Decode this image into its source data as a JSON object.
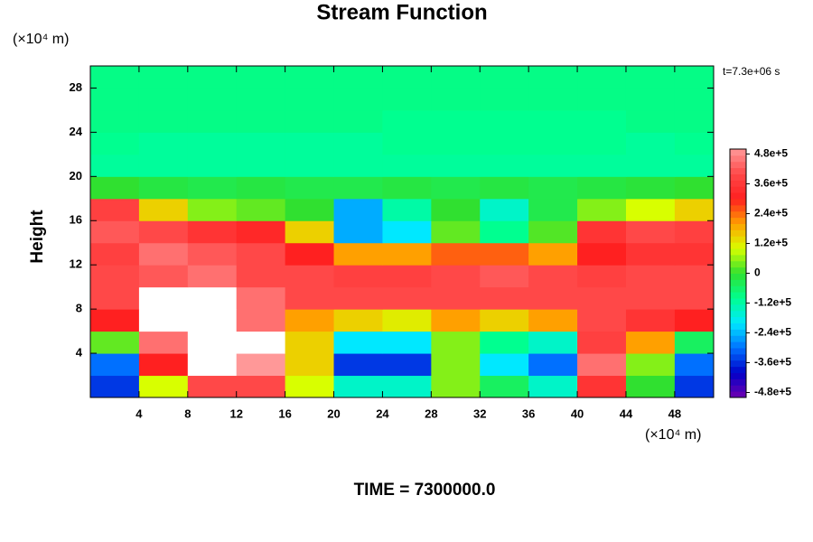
{
  "chart_data": {
    "type": "heatmap",
    "title": "Stream Function",
    "y_label": "Height",
    "y_unit": "(×10⁴ m)",
    "x_unit": "(×10⁴ m)",
    "time_label": "t=7.3e+06 s",
    "footer": "TIME = 7300000.0",
    "xlim": [
      0,
      51.2
    ],
    "ylim": [
      0,
      30
    ],
    "xticks": [
      4,
      8,
      12,
      16,
      20,
      24,
      28,
      32,
      36,
      40,
      44,
      48
    ],
    "yticks": [
      4,
      8,
      12,
      16,
      20,
      24,
      28
    ],
    "x": [
      2,
      6,
      10,
      14,
      18,
      22,
      26,
      30,
      34,
      38,
      42,
      46,
      50
    ],
    "y": [
      1,
      3,
      5,
      7,
      9,
      11,
      13,
      15,
      17,
      19,
      21,
      23,
      25,
      27,
      29
    ],
    "z": [
      [
        -350000.0,
        100000.0,
        400000.0,
        400000.0,
        100000.0,
        -150000.0,
        -150000.0,
        50000.0,
        -50000.0,
        -150000.0,
        350000.0,
        0,
        -350000.0
      ],
      [
        -300000.0,
        300000.0,
        550000.0,
        500000.0,
        150000.0,
        -350000.0,
        -350000.0,
        50000.0,
        -200000.0,
        -300000.0,
        450000.0,
        50000.0,
        -300000.0
      ],
      [
        30000.0,
        450000.0,
        550000.0,
        550000.0,
        150000.0,
        -200000.0,
        -200000.0,
        50000.0,
        -100000.0,
        -150000.0,
        380000.0,
        200000.0,
        -50000.0
      ],
      [
        300000.0,
        550000.0,
        550000.0,
        450000.0,
        200000.0,
        150000.0,
        120000.0,
        200000.0,
        150000.0,
        200000.0,
        400000.0,
        350000.0,
        300000.0
      ],
      [
        400000.0,
        520000.0,
        520000.0,
        450000.0,
        400000.0,
        400000.0,
        400000.0,
        400000.0,
        400000.0,
        400000.0,
        400000.0,
        400000.0,
        400000.0
      ],
      [
        400000.0,
        420000.0,
        450000.0,
        400000.0,
        400000.0,
        380000.0,
        380000.0,
        400000.0,
        420000.0,
        400000.0,
        380000.0,
        400000.0,
        400000.0
      ],
      [
        380000.0,
        450000.0,
        420000.0,
        400000.0,
        300000.0,
        200000.0,
        200000.0,
        250000.0,
        250000.0,
        200000.0,
        300000.0,
        350000.0,
        350000.0
      ],
      [
        420000.0,
        400000.0,
        350000.0,
        320000.0,
        150000.0,
        -250000.0,
        -200000.0,
        30000.0,
        -100000.0,
        20000.0,
        350000.0,
        400000.0,
        380000.0
      ],
      [
        380000.0,
        150000.0,
        50000.0,
        30000.0,
        0,
        -250000.0,
        -120000.0,
        0,
        -150000.0,
        -30000.0,
        50000.0,
        100000.0,
        150000.0
      ],
      [
        0,
        -20000.0,
        -30000.0,
        -20000.0,
        -30000.0,
        -30000.0,
        -20000.0,
        -30000.0,
        -20000.0,
        -30000.0,
        -20000.0,
        -10000.0,
        0
      ],
      [
        -110000.0,
        -110000.0,
        -110000.0,
        -110000.0,
        -110000.0,
        -110000.0,
        -110000.0,
        -110000.0,
        -110000.0,
        -110000.0,
        -110000.0,
        -110000.0,
        -110000.0
      ],
      [
        -100000.0,
        -110000.0,
        -110000.0,
        -110000.0,
        -110000.0,
        -110000.0,
        -100000.0,
        -100000.0,
        -100000.0,
        -100000.0,
        -100000.0,
        -110000.0,
        -100000.0
      ],
      [
        -90000.0,
        -90000.0,
        -90000.0,
        -90000.0,
        -90000.0,
        -90000.0,
        -100000.0,
        -100000.0,
        -100000.0,
        -100000.0,
        -100000.0,
        -90000.0,
        -90000.0
      ],
      [
        -90000.0,
        -90000.0,
        -90000.0,
        -90000.0,
        -90000.0,
        -90000.0,
        -90000.0,
        -90000.0,
        -90000.0,
        -90000.0,
        -90000.0,
        -90000.0,
        -90000.0
      ],
      [
        -90000.0,
        -90000.0,
        -90000.0,
        -90000.0,
        -90000.0,
        -90000.0,
        -90000.0,
        -90000.0,
        -90000.0,
        -90000.0,
        -90000.0,
        -90000.0,
        -90000.0
      ]
    ],
    "clim": [
      -500000,
      500000
    ],
    "cticks": [
      {
        "value": -480000,
        "label": "-4.8e+5"
      },
      {
        "value": -360000,
        "label": "-3.6e+5"
      },
      {
        "value": -240000,
        "label": "-2.4e+5"
      },
      {
        "value": -120000,
        "label": "-1.2e+5"
      },
      0,
      {
        "value": 120000,
        "label": "1.2e+5"
      },
      {
        "value": 240000,
        "label": "2.4e+5"
      },
      {
        "value": 360000,
        "label": "3.6e+5"
      },
      {
        "value": 480000,
        "label": "4.8e+5"
      }
    ],
    "colormap": [
      "#7000b0",
      "#0000c8",
      "#0070ff",
      "#00e8ff",
      "#00ff90",
      "#30e030",
      "#d8ff00",
      "#ffa000",
      "#ff2020",
      "#ff4848",
      "#ff9898"
    ],
    "over_color": "#ffffff",
    "under_color": "#5a0090"
  }
}
